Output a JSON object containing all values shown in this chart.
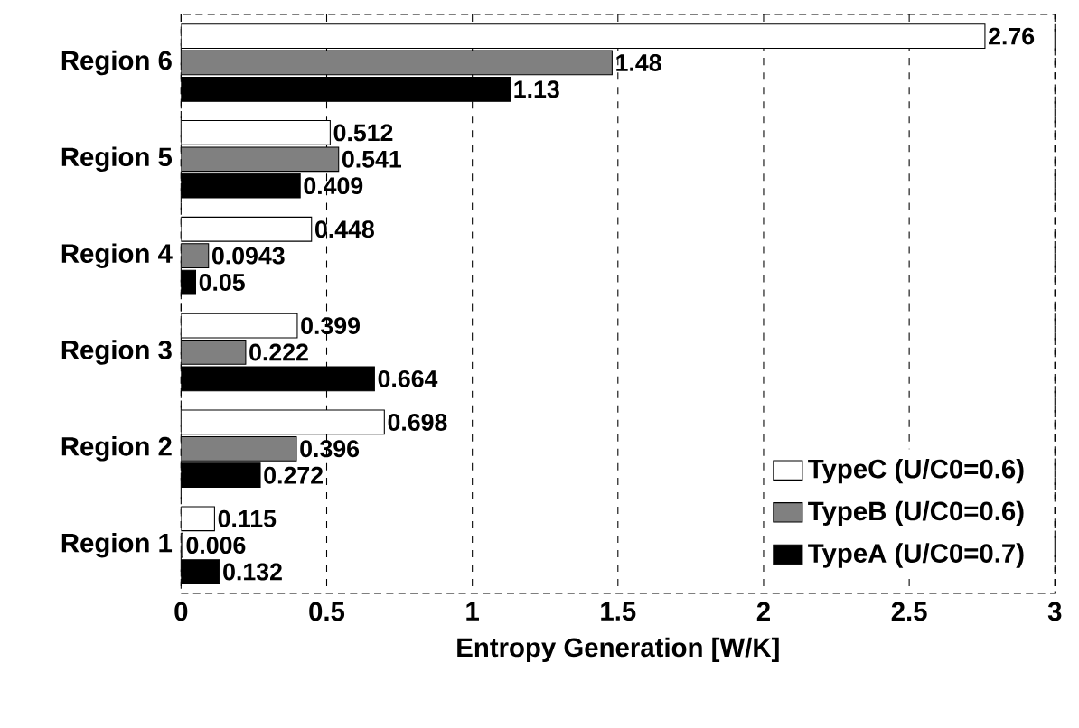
{
  "chart_data": {
    "type": "bar",
    "orientation": "horizontal",
    "xlabel": "Entropy Generation [W/K]",
    "categories": [
      "Region 6",
      "Region 5",
      "Region 4",
      "Region 3",
      "Region 2",
      "Region 1"
    ],
    "series": [
      {
        "name": "TypeC (U/C0=0.6)",
        "color": "#ffffff",
        "values": [
          2.76,
          0.512,
          0.448,
          0.399,
          0.698,
          0.115
        ]
      },
      {
        "name": "TypeB (U/C0=0.6)",
        "color": "#808080",
        "values": [
          1.48,
          0.541,
          0.0943,
          0.222,
          0.396,
          0.006
        ]
      },
      {
        "name": "TypeA (U/C0=0.7)",
        "color": "#000000",
        "values": [
          1.13,
          0.409,
          0.05,
          0.664,
          0.272,
          0.132
        ]
      }
    ],
    "xlim": [
      0,
      3
    ],
    "xticks": [
      0,
      0.5,
      1,
      1.5,
      2,
      2.5,
      3
    ],
    "grid": "x",
    "legend": "bottom right",
    "data_labels": true
  }
}
